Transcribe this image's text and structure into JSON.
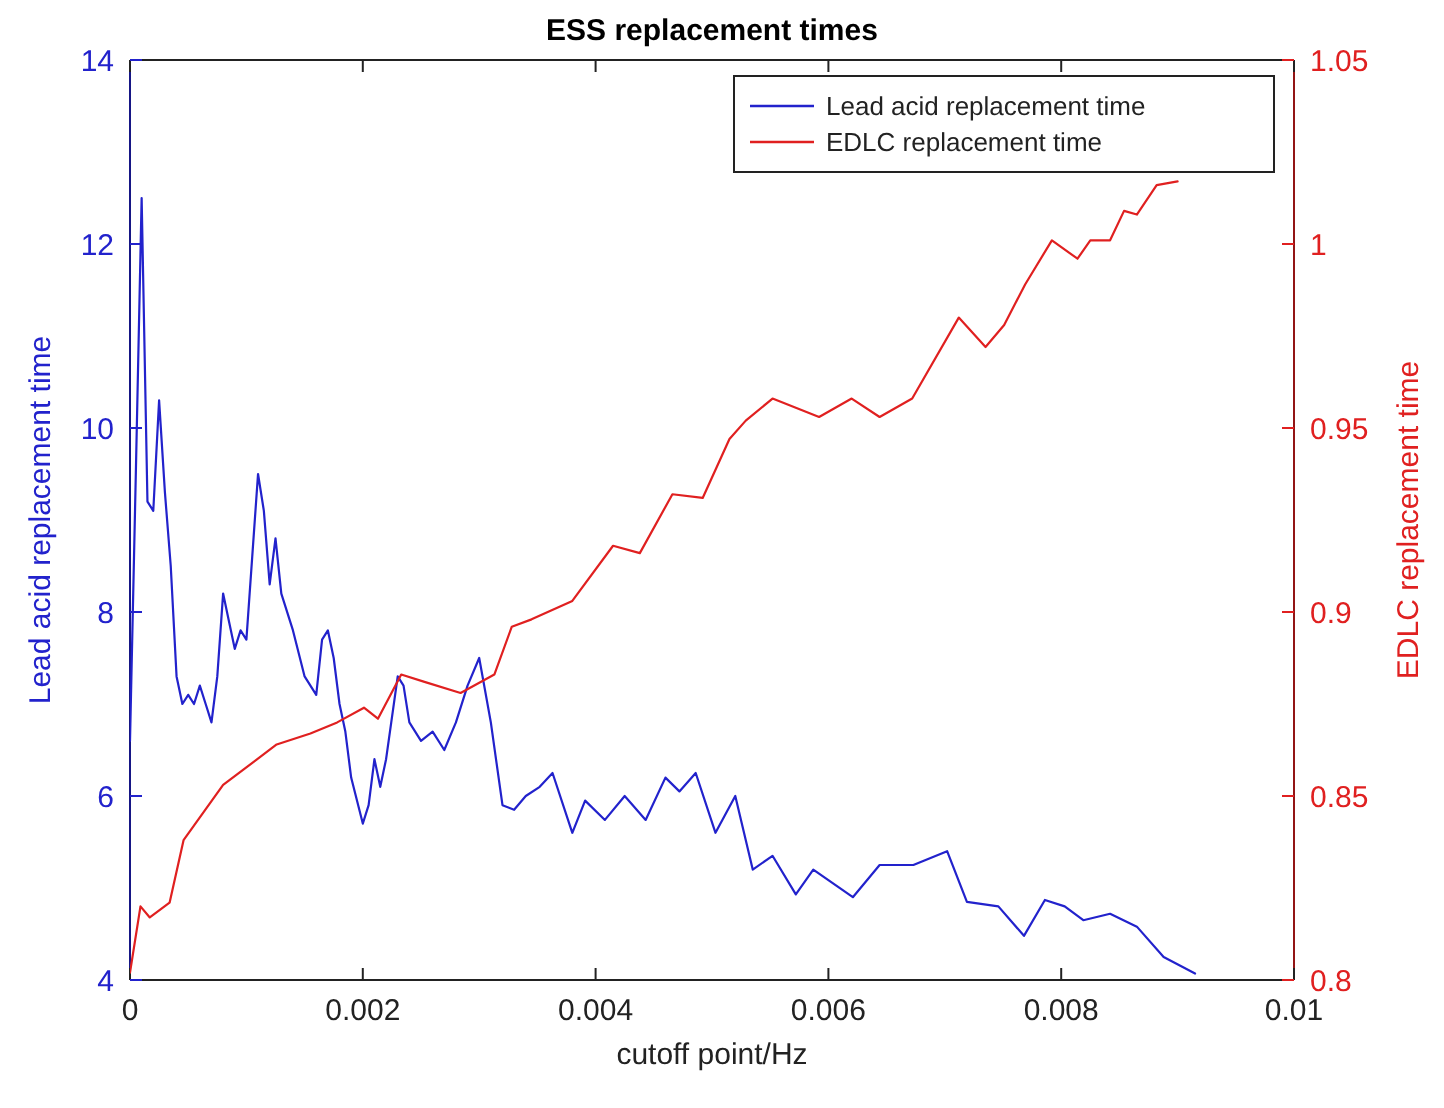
{
  "chart_data": {
    "type": "line",
    "title": "ESS replacement times",
    "xlabel": "cutoff point/Hz",
    "ylabel": "Lead acid replacement time",
    "y2label": "EDLC replacement time",
    "xlim": [
      0,
      0.01
    ],
    "xticks": [
      0,
      0.002,
      0.004,
      0.006,
      0.008,
      0.01
    ],
    "ylim": [
      4,
      14
    ],
    "yticks": [
      4,
      6,
      8,
      10,
      12,
      14
    ],
    "y2lim": [
      0.8,
      1.05
    ],
    "y2ticks": [
      0.8,
      0.85,
      0.9,
      0.95,
      1,
      1.05
    ],
    "legend": "top right",
    "grid": false,
    "marker": "none",
    "line_style": "solid",
    "series": [
      {
        "name": "Lead acid replacement time",
        "color": "#2222cc",
        "x": [
          0,
          5e-05,
          0.0001,
          0.00015,
          0.0002,
          0.00025,
          0.0003,
          0.00035,
          0.0004,
          0.00045,
          0.0005,
          0.00055,
          0.0006,
          0.00065,
          0.0007,
          0.00075,
          0.0008,
          0.00085,
          0.0009,
          0.00095,
          0.001,
          0.00105,
          0.0011,
          0.00115,
          0.0012,
          0.00125,
          0.0013,
          0.0014,
          0.0015,
          0.0016,
          0.00165,
          0.0017,
          0.00175,
          0.0018,
          0.00185,
          0.0019,
          0.002,
          0.00205,
          0.0021,
          0.00215,
          0.0022,
          0.0023,
          0.00235,
          0.0024,
          0.0025,
          0.0026,
          0.0027,
          0.0028,
          0.0029,
          0.003,
          0.0031,
          0.0032,
          0.0033,
          0.0034,
          0.00352,
          0.00363,
          0.0038,
          0.00391,
          0.00408,
          0.00425,
          0.00443,
          0.0046,
          0.00472,
          0.00486,
          0.00503,
          0.0052,
          0.00535,
          0.00552,
          0.00572,
          0.00587,
          0.00621,
          0.00644,
          0.00673,
          0.00702,
          0.00719,
          0.00746,
          0.00768,
          0.00786,
          0.00803,
          0.00819,
          0.00842,
          0.00865,
          0.00888,
          0.00915
        ],
        "values": [
          6.6,
          9.5,
          12.5,
          9.2,
          9.1,
          10.3,
          9.3,
          8.5,
          7.3,
          7.0,
          7.1,
          7.0,
          7.2,
          7.0,
          6.8,
          7.3,
          8.2,
          7.9,
          7.6,
          7.8,
          7.7,
          8.6,
          9.5,
          9.1,
          8.3,
          8.8,
          8.2,
          7.8,
          7.3,
          7.1,
          7.7,
          7.8,
          7.5,
          7.0,
          6.7,
          6.2,
          5.7,
          5.9,
          6.4,
          6.1,
          6.4,
          7.3,
          7.2,
          6.8,
          6.6,
          6.7,
          6.5,
          6.8,
          7.2,
          7.5,
          6.8,
          5.9,
          5.85,
          6.0,
          6.1,
          6.25,
          5.6,
          5.95,
          5.74,
          6.0,
          5.74,
          6.2,
          6.05,
          6.25,
          5.6,
          6.0,
          5.2,
          5.35,
          4.93,
          5.2,
          4.9,
          5.25,
          5.25,
          5.4,
          4.85,
          4.8,
          4.48,
          4.87,
          4.8,
          4.65,
          4.72,
          4.58,
          4.25,
          4.07
        ]
      },
      {
        "name": "EDLC replacement time",
        "color": "#e02020",
        "axis": "y2",
        "x": [
          0,
          9e-05,
          0.00017,
          0.00034,
          0.00046,
          0.0008,
          0.00126,
          0.00155,
          0.00178,
          0.00201,
          0.00213,
          0.00233,
          0.00253,
          0.00284,
          0.00313,
          0.00328,
          0.00345,
          0.0038,
          0.00415,
          0.00438,
          0.00466,
          0.00492,
          0.00515,
          0.00529,
          0.00552,
          0.00592,
          0.0062,
          0.00644,
          0.00672,
          0.00712,
          0.00735,
          0.00751,
          0.00769,
          0.00792,
          0.00814,
          0.00825,
          0.00842,
          0.00854,
          0.00865,
          0.00882,
          0.009
        ],
        "values": [
          0.802,
          0.82,
          0.817,
          0.821,
          0.838,
          0.853,
          0.864,
          0.867,
          0.87,
          0.874,
          0.871,
          0.883,
          0.881,
          0.878,
          0.883,
          0.896,
          0.898,
          0.903,
          0.918,
          0.916,
          0.932,
          0.931,
          0.947,
          0.952,
          0.958,
          0.953,
          0.958,
          0.953,
          0.958,
          0.98,
          0.972,
          0.978,
          0.989,
          1.001,
          0.996,
          1.001,
          1.001,
          1.009,
          1.008,
          1.016,
          1.017
        ]
      }
    ]
  }
}
